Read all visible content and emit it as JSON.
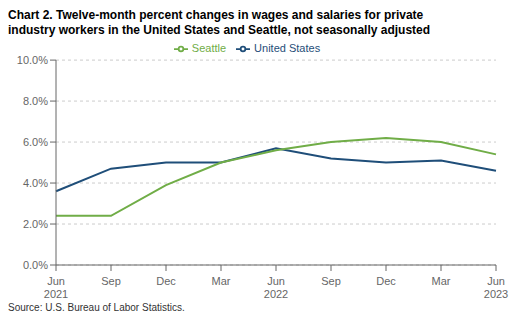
{
  "chart_data": {
    "type": "line",
    "title": "Chart 2. Twelve-month percent changes in wages and salaries for private",
    "subtitle": "industry workers in the United States and Seattle, not seasonally adjusted",
    "categories": [
      "Jun\n2021",
      "Sep",
      "Dec",
      "Mar",
      "Jun\n2022",
      "Sep",
      "Dec",
      "Mar",
      "Jun\n2023"
    ],
    "series": [
      {
        "name": "United States",
        "color": "#1f4e79",
        "values": [
          3.6,
          4.7,
          5.0,
          5.0,
          5.7,
          5.2,
          5.0,
          5.1,
          4.6
        ]
      },
      {
        "name": "Seattle",
        "color": "#70ad47",
        "values": [
          2.4,
          2.4,
          3.9,
          5.0,
          5.6,
          6.0,
          6.2,
          6.0,
          5.4
        ]
      }
    ],
    "ylim": [
      0.0,
      10.0
    ],
    "yticks": [
      {
        "value": 0.0,
        "label": "0.0%"
      },
      {
        "value": 2.0,
        "label": "2.0%"
      },
      {
        "value": 4.0,
        "label": "4.0%"
      },
      {
        "value": 6.0,
        "label": "6.0%"
      },
      {
        "value": 8.0,
        "label": "8.0%"
      },
      {
        "value": 10.0,
        "label": "10.0%"
      }
    ],
    "grid": true,
    "legend": "top",
    "annotations": [
      "Source: U.S. Bureau of Labor Statistics."
    ]
  }
}
